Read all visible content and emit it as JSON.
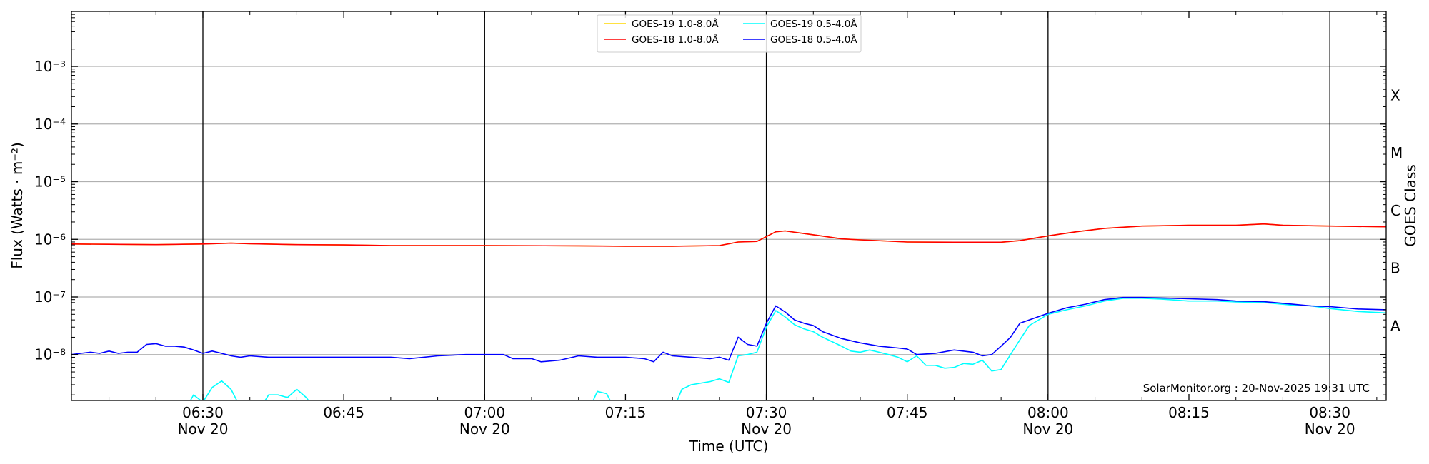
{
  "chart_data": {
    "type": "line",
    "title": "",
    "xlabel": "Time (UTC)",
    "ylabel": "Flux (Watts · m⁻²)",
    "right_axis_label": "GOES Class",
    "yscale": "log",
    "ylim": [
      "1.6e-9",
      "9e-3"
    ],
    "xlim": [
      "06:16",
      "08:36"
    ],
    "y_ticks": [
      {
        "value": "1e-8",
        "label": "10⁻⁸"
      },
      {
        "value": "1e-7",
        "label": "10⁻⁷"
      },
      {
        "value": "1e-6",
        "label": "10⁻⁶"
      },
      {
        "value": "1e-5",
        "label": "10⁻⁵"
      },
      {
        "value": "1e-4",
        "label": "10⁻⁴"
      },
      {
        "value": "1e-3",
        "label": "10⁻³"
      }
    ],
    "x_ticks": [
      {
        "time": "06:30",
        "label": "06:30",
        "date": "Nov 20"
      },
      {
        "time": "06:45",
        "label": "06:45",
        "date": ""
      },
      {
        "time": "07:00",
        "label": "07:00",
        "date": "Nov 20"
      },
      {
        "time": "07:15",
        "label": "07:15",
        "date": ""
      },
      {
        "time": "07:30",
        "label": "07:30",
        "date": "Nov 20"
      },
      {
        "time": "07:45",
        "label": "07:45",
        "date": ""
      },
      {
        "time": "08:00",
        "label": "08:00",
        "date": "Nov 20"
      },
      {
        "time": "08:15",
        "label": "08:15",
        "date": ""
      },
      {
        "time": "08:30",
        "label": "08:30",
        "date": "Nov 20"
      }
    ],
    "vertical_lines": [
      "06:30",
      "07:00",
      "07:30",
      "08:00",
      "08:30"
    ],
    "goes_classes": [
      {
        "label": "A",
        "value": "3.16e-8"
      },
      {
        "label": "B",
        "value": "3.16e-7"
      },
      {
        "label": "C",
        "value": "3.16e-6"
      },
      {
        "label": "M",
        "value": "3.16e-5"
      },
      {
        "label": "X",
        "value": "3.16e-4"
      }
    ],
    "grid": "horizontal",
    "legend_position": "top-center",
    "credit": "SolarMonitor.org : 20-Nov-2025 19:31 UTC",
    "series": [
      {
        "name": "GOES-19 1.0-8.0Å",
        "color": "#ffd700",
        "points": [
          [
            "06:16",
            "8.3e-7"
          ],
          [
            "06:20",
            "8.2e-7"
          ],
          [
            "06:25",
            "8.1e-7"
          ],
          [
            "06:30",
            "8.3e-7"
          ],
          [
            "06:33",
            "8.6e-7"
          ],
          [
            "06:35",
            "8.4e-7"
          ],
          [
            "06:40",
            "8.1e-7"
          ],
          [
            "06:45",
            "8.0e-7"
          ],
          [
            "06:50",
            "7.8e-7"
          ],
          [
            "07:00",
            "7.8e-7"
          ],
          [
            "07:10",
            "7.7e-7"
          ],
          [
            "07:15",
            "7.6e-7"
          ],
          [
            "07:20",
            "7.6e-7"
          ],
          [
            "07:25",
            "7.8e-7"
          ],
          [
            "07:27",
            "9.0e-7"
          ],
          [
            "07:29",
            "9.2e-7"
          ],
          [
            "07:31",
            "1.35e-6"
          ],
          [
            "07:32",
            "1.4e-6"
          ],
          [
            "07:35",
            "1.2e-6"
          ],
          [
            "07:38",
            "1.02e-6"
          ],
          [
            "07:40",
            "9.8e-7"
          ],
          [
            "07:45",
            "9.0e-7"
          ],
          [
            "07:50",
            "8.9e-7"
          ],
          [
            "07:55",
            "8.9e-7"
          ],
          [
            "07:57",
            "9.5e-7"
          ],
          [
            "08:00",
            "1.15e-6"
          ],
          [
            "08:03",
            "1.35e-6"
          ],
          [
            "08:06",
            "1.55e-6"
          ],
          [
            "08:10",
            "1.7e-6"
          ],
          [
            "08:15",
            "1.75e-6"
          ],
          [
            "08:20",
            "1.75e-6"
          ],
          [
            "08:23",
            "1.85e-6"
          ],
          [
            "08:25",
            "1.75e-6"
          ],
          [
            "08:30",
            "1.7e-6"
          ],
          [
            "08:36",
            "1.65e-6"
          ]
        ]
      },
      {
        "name": "GOES-18 1.0-8.0Å",
        "color": "#ff0000",
        "points": [
          [
            "06:16",
            "8.3e-7"
          ],
          [
            "06:20",
            "8.2e-7"
          ],
          [
            "06:25",
            "8.1e-7"
          ],
          [
            "06:30",
            "8.3e-7"
          ],
          [
            "06:33",
            "8.6e-7"
          ],
          [
            "06:35",
            "8.4e-7"
          ],
          [
            "06:40",
            "8.1e-7"
          ],
          [
            "06:45",
            "8.0e-7"
          ],
          [
            "06:50",
            "7.8e-7"
          ],
          [
            "07:00",
            "7.8e-7"
          ],
          [
            "07:10",
            "7.7e-7"
          ],
          [
            "07:15",
            "7.6e-7"
          ],
          [
            "07:20",
            "7.6e-7"
          ],
          [
            "07:25",
            "7.8e-7"
          ],
          [
            "07:27",
            "9.0e-7"
          ],
          [
            "07:29",
            "9.2e-7"
          ],
          [
            "07:31",
            "1.35e-6"
          ],
          [
            "07:32",
            "1.4e-6"
          ],
          [
            "07:35",
            "1.2e-6"
          ],
          [
            "07:38",
            "1.02e-6"
          ],
          [
            "07:40",
            "9.8e-7"
          ],
          [
            "07:45",
            "9.0e-7"
          ],
          [
            "07:50",
            "8.9e-7"
          ],
          [
            "07:55",
            "8.9e-7"
          ],
          [
            "07:57",
            "9.5e-7"
          ],
          [
            "08:00",
            "1.15e-6"
          ],
          [
            "08:03",
            "1.35e-6"
          ],
          [
            "08:06",
            "1.55e-6"
          ],
          [
            "08:10",
            "1.7e-6"
          ],
          [
            "08:15",
            "1.75e-6"
          ],
          [
            "08:20",
            "1.75e-6"
          ],
          [
            "08:23",
            "1.85e-6"
          ],
          [
            "08:25",
            "1.75e-6"
          ],
          [
            "08:30",
            "1.7e-6"
          ],
          [
            "08:36",
            "1.65e-6"
          ]
        ]
      },
      {
        "name": "GOES-19 0.5-4.0Å",
        "color": "#00ffff",
        "points": [
          [
            "06:16",
            "1.0e-9"
          ],
          [
            "06:28",
            "1.0e-9"
          ],
          [
            "06:29",
            "2.0e-9"
          ],
          [
            "06:30",
            "1.5e-9"
          ],
          [
            "06:31",
            "2.7e-9"
          ],
          [
            "06:32",
            "3.5e-9"
          ],
          [
            "06:33",
            "2.5e-9"
          ],
          [
            "06:34",
            "1.2e-9"
          ],
          [
            "06:35",
            "1.6e-9"
          ],
          [
            "06:36",
            "1.1e-9"
          ],
          [
            "06:37",
            "2.0e-9"
          ],
          [
            "06:38",
            "2.0e-9"
          ],
          [
            "06:39",
            "1.8e-9"
          ],
          [
            "06:40",
            "2.5e-9"
          ],
          [
            "06:41",
            "1.8e-9"
          ],
          [
            "06:42",
            "1.1e-9"
          ],
          [
            "06:44",
            "1.0e-9"
          ],
          [
            "06:45",
            "1.3e-9"
          ],
          [
            "06:46",
            "1.0e-9"
          ],
          [
            "07:09",
            "1.0e-9"
          ],
          [
            "07:10",
            "1.2e-9"
          ],
          [
            "07:11",
            "1.0e-9"
          ],
          [
            "07:12",
            "2.3e-9"
          ],
          [
            "07:13",
            "2.1e-9"
          ],
          [
            "07:14",
            "1.0e-9"
          ],
          [
            "07:20",
            "1.0e-9"
          ],
          [
            "07:21",
            "2.5e-9"
          ],
          [
            "07:22",
            "3.0e-9"
          ],
          [
            "07:24",
            "3.4e-9"
          ],
          [
            "07:25",
            "3.8e-9"
          ],
          [
            "07:26",
            "3.3e-9"
          ],
          [
            "07:27",
            "9.5e-9"
          ],
          [
            "07:28",
            "1.0e-8"
          ],
          [
            "07:29",
            "1.1e-8"
          ],
          [
            "07:30",
            "3.0e-8"
          ],
          [
            "07:31",
            "5.8e-8"
          ],
          [
            "07:32",
            "4.5e-8"
          ],
          [
            "07:33",
            "3.3e-8"
          ],
          [
            "07:34",
            "2.8e-8"
          ],
          [
            "07:35",
            "2.5e-8"
          ],
          [
            "07:36",
            "2.0e-8"
          ],
          [
            "07:38",
            "1.4e-8"
          ],
          [
            "07:39",
            "1.15e-8"
          ],
          [
            "07:40",
            "1.1e-8"
          ],
          [
            "07:41",
            "1.2e-8"
          ],
          [
            "07:42",
            "1.1e-8"
          ],
          [
            "07:43",
            "1.0e-8"
          ],
          [
            "07:44",
            "9.0e-9"
          ],
          [
            "07:45",
            "7.5e-9"
          ],
          [
            "07:46",
            "9.5e-9"
          ],
          [
            "07:47",
            "6.5e-9"
          ],
          [
            "07:48",
            "6.5e-9"
          ],
          [
            "07:49",
            "5.8e-9"
          ],
          [
            "07:50",
            "6.0e-9"
          ],
          [
            "07:51",
            "7.0e-9"
          ],
          [
            "07:52",
            "6.8e-9"
          ],
          [
            "07:53",
            "8.0e-9"
          ],
          [
            "07:54",
            "5.2e-9"
          ],
          [
            "07:55",
            "5.5e-9"
          ],
          [
            "07:56",
            "1.0e-8"
          ],
          [
            "07:57",
            "1.8e-8"
          ],
          [
            "07:58",
            "3.2e-8"
          ],
          [
            "08:00",
            "5.0e-8"
          ],
          [
            "08:02",
            "6.0e-8"
          ],
          [
            "08:04",
            "7.0e-8"
          ],
          [
            "08:06",
            "8.5e-8"
          ],
          [
            "08:08",
            "9.5e-8"
          ],
          [
            "08:10",
            "9.5e-8"
          ],
          [
            "08:12",
            "9.2e-8"
          ],
          [
            "08:15",
            "8.5e-8"
          ],
          [
            "08:18",
            "8.5e-8"
          ],
          [
            "08:20",
            "8.2e-8"
          ],
          [
            "08:23",
            "8.0e-8"
          ],
          [
            "08:26",
            "7.2e-8"
          ],
          [
            "08:28",
            "7.0e-8"
          ],
          [
            "08:30",
            "6.3e-8"
          ],
          [
            "08:33",
            "5.6e-8"
          ],
          [
            "08:36",
            "5.3e-8"
          ]
        ]
      },
      {
        "name": "GOES-18 0.5-4.0Å",
        "color": "#0000ff",
        "points": [
          [
            "06:16",
            "1.0e-8"
          ],
          [
            "06:17",
            "1.05e-8"
          ],
          [
            "06:18",
            "1.1e-8"
          ],
          [
            "06:19",
            "1.05e-8"
          ],
          [
            "06:20",
            "1.15e-8"
          ],
          [
            "06:21",
            "1.05e-8"
          ],
          [
            "06:22",
            "1.1e-8"
          ],
          [
            "06:23",
            "1.1e-8"
          ],
          [
            "06:24",
            "1.5e-8"
          ],
          [
            "06:25",
            "1.55e-8"
          ],
          [
            "06:26",
            "1.4e-8"
          ],
          [
            "06:27",
            "1.4e-8"
          ],
          [
            "06:28",
            "1.35e-8"
          ],
          [
            "06:29",
            "1.2e-8"
          ],
          [
            "06:30",
            "1.05e-8"
          ],
          [
            "06:31",
            "1.15e-8"
          ],
          [
            "06:32",
            "1.05e-8"
          ],
          [
            "06:33",
            "9.5e-9"
          ],
          [
            "06:34",
            "9.0e-9"
          ],
          [
            "06:35",
            "9.5e-9"
          ],
          [
            "06:37",
            "9.0e-9"
          ],
          [
            "06:40",
            "9.0e-9"
          ],
          [
            "06:45",
            "9.0e-9"
          ],
          [
            "06:50",
            "9.0e-9"
          ],
          [
            "06:52",
            "8.5e-9"
          ],
          [
            "06:55",
            "9.5e-9"
          ],
          [
            "06:58",
            "1.0e-8"
          ],
          [
            "07:00",
            "1.0e-8"
          ],
          [
            "07:02",
            "1.0e-8"
          ],
          [
            "07:03",
            "8.5e-9"
          ],
          [
            "07:05",
            "8.5e-9"
          ],
          [
            "07:06",
            "7.5e-9"
          ],
          [
            "07:08",
            "8.0e-9"
          ],
          [
            "07:10",
            "9.5e-9"
          ],
          [
            "07:12",
            "9.0e-9"
          ],
          [
            "07:15",
            "9.0e-9"
          ],
          [
            "07:17",
            "8.5e-9"
          ],
          [
            "07:18",
            "7.5e-9"
          ],
          [
            "07:19",
            "1.1e-8"
          ],
          [
            "07:20",
            "9.5e-9"
          ],
          [
            "07:22",
            "9.0e-9"
          ],
          [
            "07:24",
            "8.5e-9"
          ],
          [
            "07:25",
            "9.0e-9"
          ],
          [
            "07:26",
            "8.0e-9"
          ],
          [
            "07:27",
            "2.0e-8"
          ],
          [
            "07:28",
            "1.5e-8"
          ],
          [
            "07:29",
            "1.4e-8"
          ],
          [
            "07:30",
            "3.5e-8"
          ],
          [
            "07:31",
            "7.0e-8"
          ],
          [
            "07:32",
            "5.5e-8"
          ],
          [
            "07:33",
            "4.0e-8"
          ],
          [
            "07:34",
            "3.5e-8"
          ],
          [
            "07:35",
            "3.2e-8"
          ],
          [
            "07:36",
            "2.5e-8"
          ],
          [
            "07:38",
            "1.9e-8"
          ],
          [
            "07:40",
            "1.6e-8"
          ],
          [
            "07:42",
            "1.4e-8"
          ],
          [
            "07:44",
            "1.3e-8"
          ],
          [
            "07:45",
            "1.25e-8"
          ],
          [
            "07:46",
            "1.0e-8"
          ],
          [
            "07:48",
            "1.05e-8"
          ],
          [
            "07:50",
            "1.2e-8"
          ],
          [
            "07:52",
            "1.1e-8"
          ],
          [
            "07:53",
            "9.5e-9"
          ],
          [
            "07:54",
            "1.0e-8"
          ],
          [
            "07:55",
            "1.4e-8"
          ],
          [
            "07:56",
            "2.0e-8"
          ],
          [
            "07:57",
            "3.5e-8"
          ],
          [
            "07:58",
            "4.0e-8"
          ],
          [
            "08:00",
            "5.2e-8"
          ],
          [
            "08:02",
            "6.5e-8"
          ],
          [
            "08:04",
            "7.5e-8"
          ],
          [
            "08:06",
            "9.0e-8"
          ],
          [
            "08:08",
            "9.8e-8"
          ],
          [
            "08:10",
            "9.8e-8"
          ],
          [
            "08:12",
            "9.6e-8"
          ],
          [
            "08:15",
            "9.3e-8"
          ],
          [
            "08:18",
            "9.0e-8"
          ],
          [
            "08:20",
            "8.5e-8"
          ],
          [
            "08:23",
            "8.3e-8"
          ],
          [
            "08:26",
            "7.5e-8"
          ],
          [
            "08:28",
            "7.0e-8"
          ],
          [
            "08:30",
            "6.8e-8"
          ],
          [
            "08:33",
            "6.2e-8"
          ],
          [
            "08:36",
            "6.0e-8"
          ]
        ]
      }
    ]
  }
}
